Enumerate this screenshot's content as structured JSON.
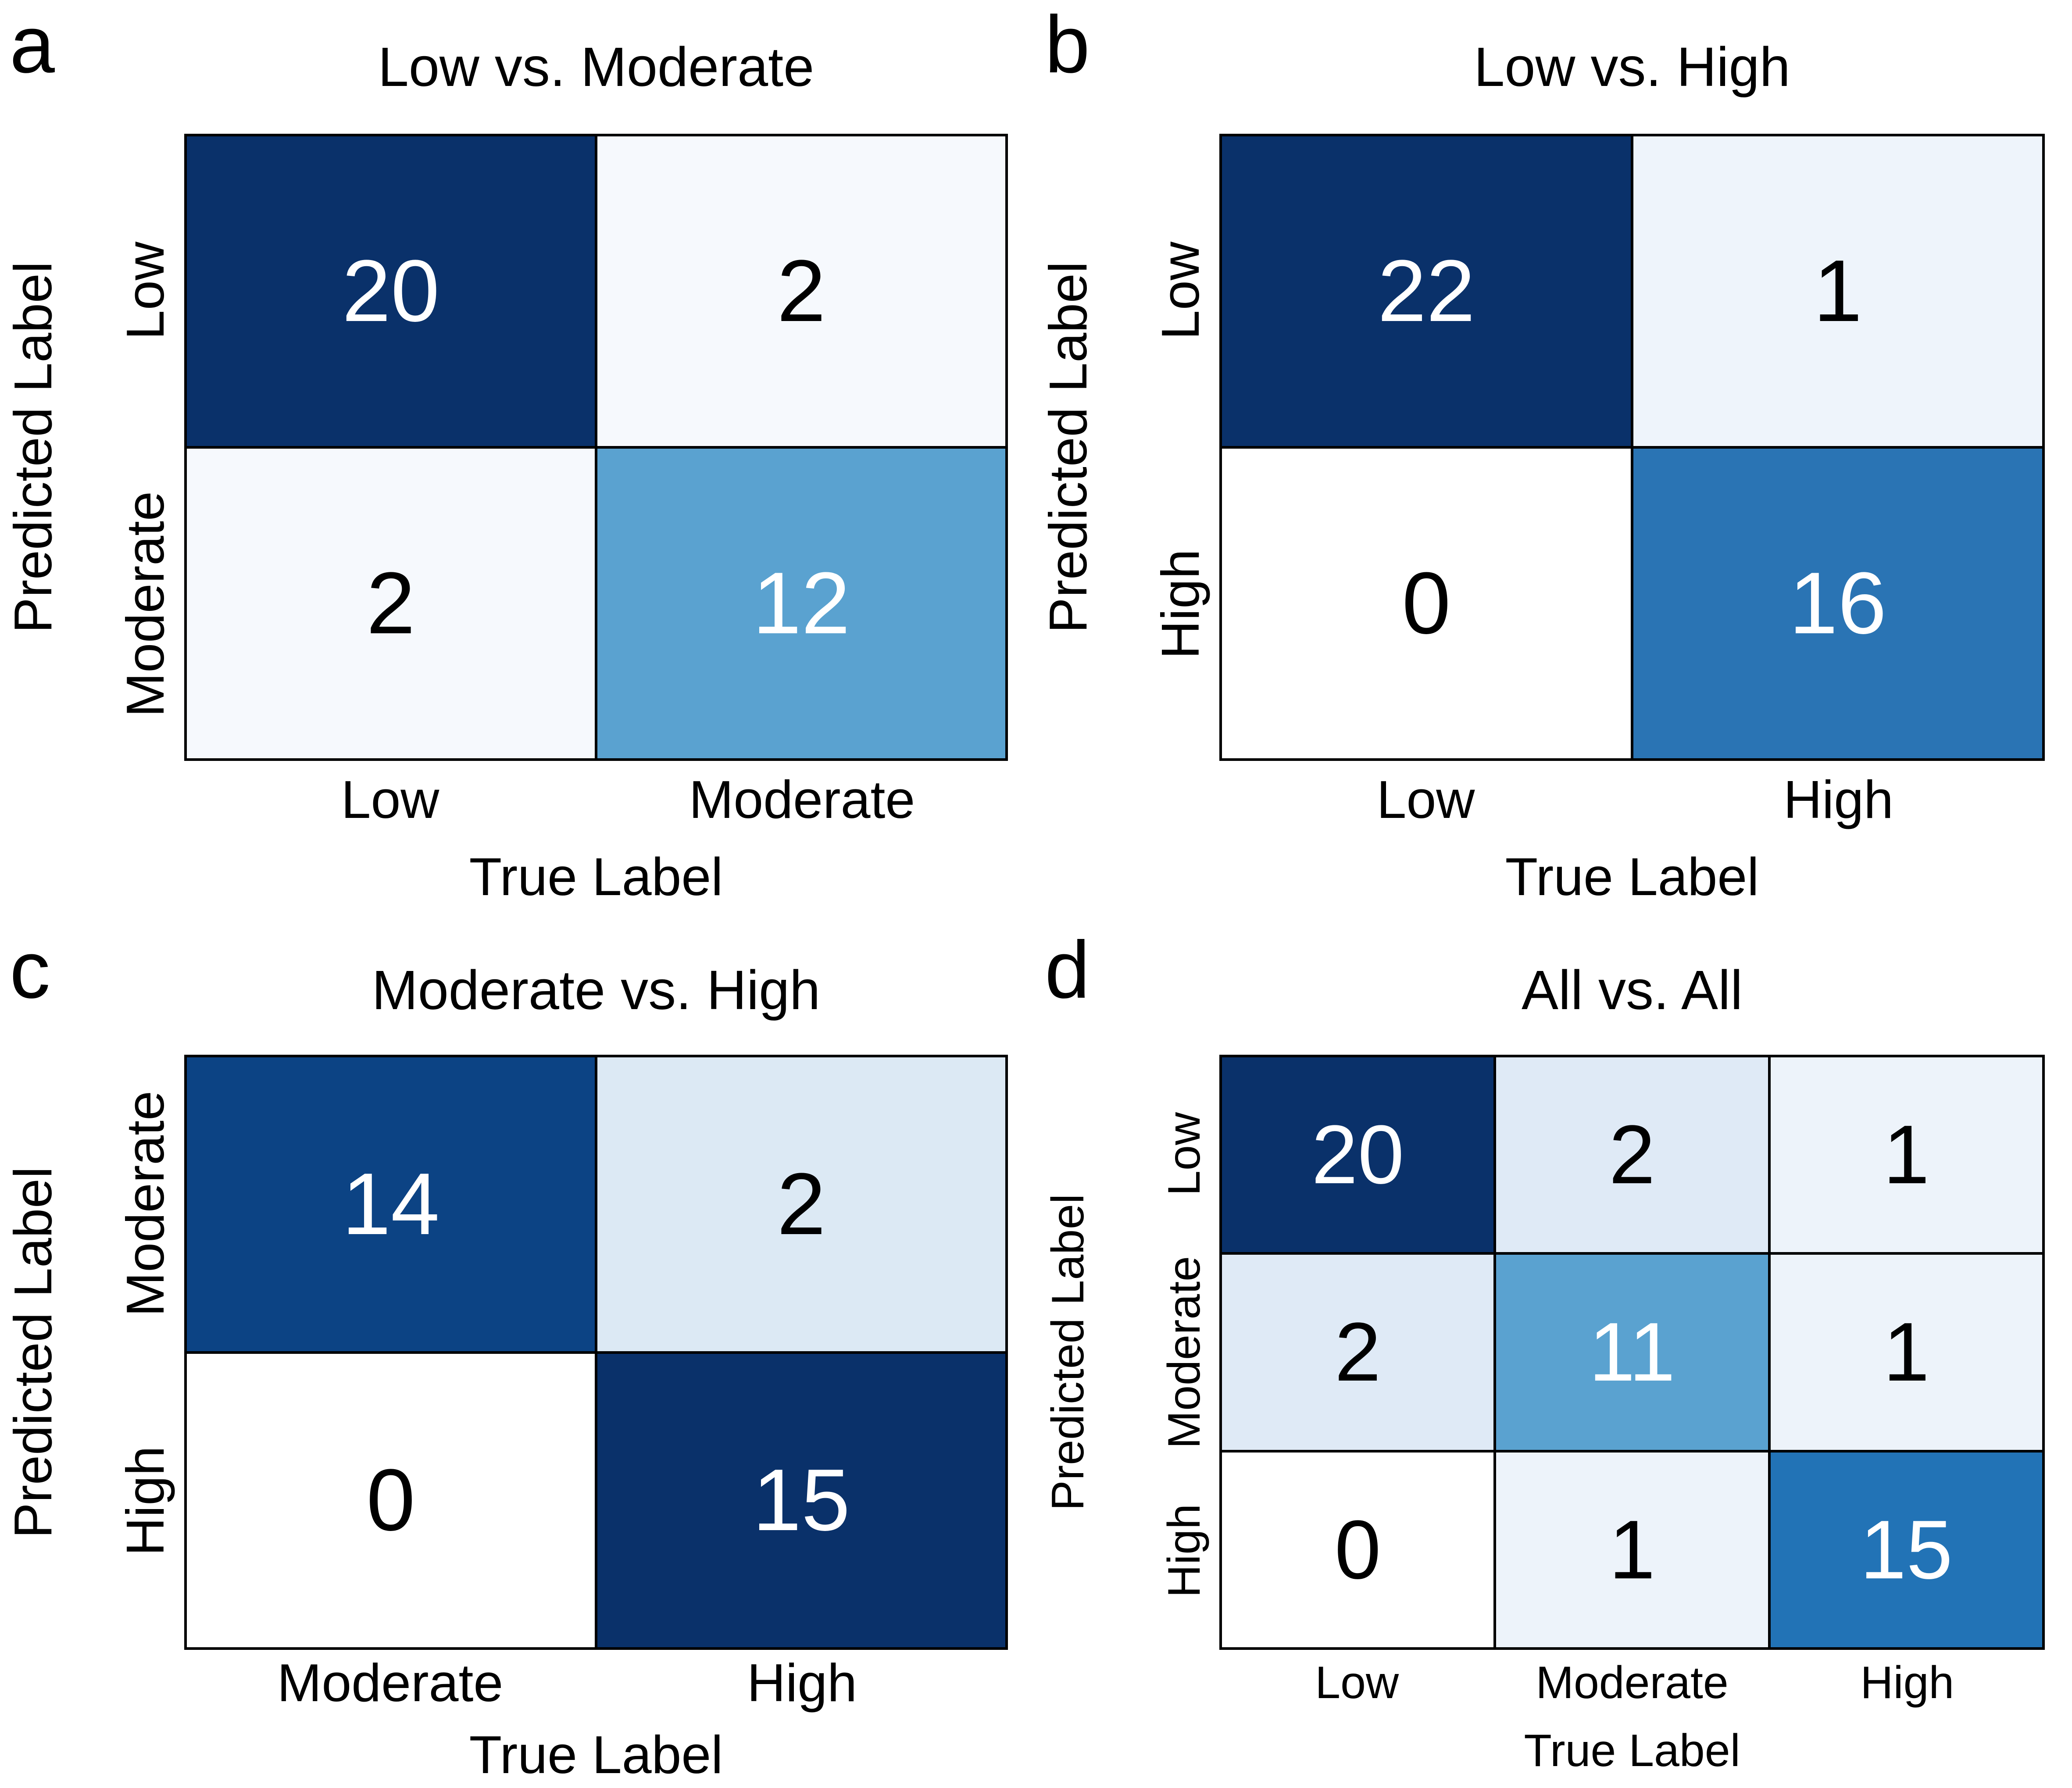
{
  "figure": {
    "background": "#ffffff",
    "grid_line_color": "#000000",
    "text_color": "#000000"
  },
  "chart_data": [
    {
      "type": "heatmap",
      "panel": "a",
      "title": "Low vs. Moderate",
      "xlabel": "True Label",
      "ylabel": "Predicted Label",
      "x_categories": [
        "Low",
        "Moderate"
      ],
      "y_categories": [
        "Low",
        "Moderate"
      ],
      "values": [
        [
          20,
          2
        ],
        [
          2,
          12
        ]
      ],
      "colormap": "Blues"
    },
    {
      "type": "heatmap",
      "panel": "b",
      "title": "Low vs. High",
      "xlabel": "True Label",
      "ylabel": "Predicted Label",
      "x_categories": [
        "Low",
        "High"
      ],
      "y_categories": [
        "Low",
        "High"
      ],
      "values": [
        [
          22,
          1
        ],
        [
          0,
          16
        ]
      ],
      "colormap": "Blues"
    },
    {
      "type": "heatmap",
      "panel": "c",
      "title": "Moderate vs. High",
      "xlabel": "True Label",
      "ylabel": "Predicted Label",
      "x_categories": [
        "Moderate",
        "High"
      ],
      "y_categories": [
        "Moderate",
        "High"
      ],
      "values": [
        [
          14,
          2
        ],
        [
          0,
          15
        ]
      ],
      "colormap": "Blues"
    },
    {
      "type": "heatmap",
      "panel": "d",
      "title": "All vs. All",
      "xlabel": "True Label",
      "ylabel": "Predicted Label",
      "x_categories": [
        "Low",
        "Moderate",
        "High"
      ],
      "y_categories": [
        "Low",
        "Moderate",
        "High"
      ],
      "values": [
        [
          20,
          2,
          1
        ],
        [
          2,
          11,
          1
        ],
        [
          0,
          1,
          15
        ]
      ],
      "colormap": "Blues"
    }
  ],
  "panels": [
    {
      "letter": "a",
      "title": "Low vs. Moderate",
      "xlabel": "True Label",
      "ylabel": "Predicted Label",
      "xticks": [
        "Low",
        "Moderate"
      ],
      "yticks": [
        "Low",
        "Moderate"
      ],
      "cells": [
        {
          "v": "20",
          "bg": "#0a316a",
          "fg": "#ffffff"
        },
        {
          "v": "2",
          "bg": "#f6f9fd",
          "fg": "#000000"
        },
        {
          "v": "2",
          "bg": "#f6f9fd",
          "fg": "#000000"
        },
        {
          "v": "12",
          "bg": "#5aa2d0",
          "fg": "#ffffff"
        }
      ]
    },
    {
      "letter": "b",
      "title": "Low vs. High",
      "xlabel": "True Label",
      "ylabel": "Predicted Label",
      "xticks": [
        "Low",
        "High"
      ],
      "yticks": [
        "Low",
        "High"
      ],
      "cells": [
        {
          "v": "22",
          "bg": "#0a316a",
          "fg": "#ffffff"
        },
        {
          "v": "1",
          "bg": "#eef4fb",
          "fg": "#000000"
        },
        {
          "v": "0",
          "bg": "#ffffff",
          "fg": "#000000"
        },
        {
          "v": "16",
          "bg": "#2a74b4",
          "fg": "#ffffff"
        }
      ]
    },
    {
      "letter": "c",
      "title": "Moderate vs. High",
      "xlabel": "True Label",
      "ylabel": "Predicted Label",
      "xticks": [
        "Moderate",
        "High"
      ],
      "yticks": [
        "Moderate",
        "High"
      ],
      "cells": [
        {
          "v": "14",
          "bg": "#0c4384",
          "fg": "#ffffff"
        },
        {
          "v": "2",
          "bg": "#dce9f4",
          "fg": "#000000"
        },
        {
          "v": "0",
          "bg": "#ffffff",
          "fg": "#000000"
        },
        {
          "v": "15",
          "bg": "#0a316a",
          "fg": "#ffffff"
        }
      ]
    },
    {
      "letter": "d",
      "title": "All vs. All",
      "xlabel": "True Label",
      "ylabel": "Predicted Label",
      "xticks": [
        "Low",
        "Moderate",
        "High"
      ],
      "yticks": [
        "Low",
        "Moderate",
        "High"
      ],
      "cells": [
        {
          "v": "20",
          "bg": "#0a316a",
          "fg": "#ffffff"
        },
        {
          "v": "2",
          "bg": "#dfeaf6",
          "fg": "#000000"
        },
        {
          "v": "1",
          "bg": "#edf3fa",
          "fg": "#000000"
        },
        {
          "v": "2",
          "bg": "#dfeaf6",
          "fg": "#000000"
        },
        {
          "v": "11",
          "bg": "#5aa2d0",
          "fg": "#ffffff"
        },
        {
          "v": "1",
          "bg": "#edf3fa",
          "fg": "#000000"
        },
        {
          "v": "0",
          "bg": "#ffffff",
          "fg": "#000000"
        },
        {
          "v": "1",
          "bg": "#edf3fa",
          "fg": "#000000"
        },
        {
          "v": "15",
          "bg": "#2273b6",
          "fg": "#ffffff"
        }
      ]
    }
  ]
}
